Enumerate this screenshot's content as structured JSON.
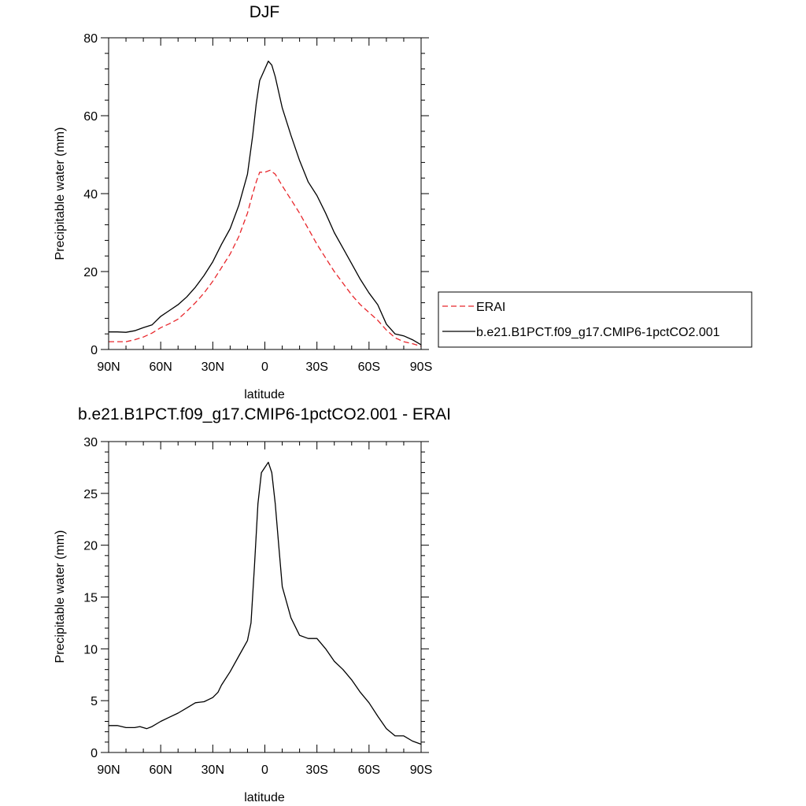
{
  "chart_data": [
    {
      "type": "line",
      "title": "DJF",
      "xlabel": "latitude",
      "ylabel": "Precipitable water (mm)",
      "xlim": [
        -90,
        90
      ],
      "ylim": [
        0,
        80
      ],
      "x_ticks": [
        -90,
        -60,
        -30,
        0,
        30,
        60,
        90
      ],
      "x_tick_labels": [
        "90N",
        "60N",
        "30N",
        "0",
        "30S",
        "60S",
        "90S"
      ],
      "y_ticks": [
        0,
        20,
        40,
        60,
        80
      ],
      "y_tick_labels": [
        "0",
        "20",
        "40",
        "60",
        "80"
      ],
      "legend": [
        {
          "label": "ERAI",
          "color": "#e8262b",
          "dash": "dashed"
        },
        {
          "label": "b.e21.B1PCT.f09_g17.CMIP6-1pctCO2.001",
          "color": "#000000",
          "dash": "solid"
        }
      ],
      "series": [
        {
          "name": "ERAI",
          "color": "#e8262b",
          "dash": "dashed",
          "points": [
            [
              -90,
              2
            ],
            [
              -80,
              2
            ],
            [
              -75,
              2.5
            ],
            [
              -70,
              3.2
            ],
            [
              -65,
              4.2
            ],
            [
              -60,
              5.6
            ],
            [
              -55,
              6.6
            ],
            [
              -50,
              7.8
            ],
            [
              -45,
              9.8
            ],
            [
              -40,
              12
            ],
            [
              -35,
              14.5
            ],
            [
              -30,
              17.5
            ],
            [
              -25,
              21
            ],
            [
              -20,
              24.5
            ],
            [
              -15,
              29
            ],
            [
              -10,
              35
            ],
            [
              -7,
              40
            ],
            [
              -5,
              43
            ],
            [
              -3,
              45.5
            ],
            [
              0,
              45.5
            ],
            [
              3,
              46
            ],
            [
              6,
              45
            ],
            [
              10,
              42
            ],
            [
              15,
              38.5
            ],
            [
              20,
              35
            ],
            [
              25,
              31
            ],
            [
              30,
              27
            ],
            [
              35,
              23.5
            ],
            [
              40,
              20
            ],
            [
              45,
              17
            ],
            [
              50,
              14
            ],
            [
              55,
              11.5
            ],
            [
              60,
              9.5
            ],
            [
              65,
              7.5
            ],
            [
              70,
              5
            ],
            [
              75,
              3
            ],
            [
              80,
              2
            ],
            [
              85,
              1.5
            ],
            [
              90,
              0.8
            ]
          ]
        },
        {
          "name": "b.e21.B1PCT.f09_g17.CMIP6-1pctCO2.001",
          "color": "#000000",
          "dash": "solid",
          "points": [
            [
              -90,
              4.5
            ],
            [
              -85,
              4.5
            ],
            [
              -80,
              4.4
            ],
            [
              -75,
              4.8
            ],
            [
              -70,
              5.6
            ],
            [
              -65,
              6.3
            ],
            [
              -60,
              8.5
            ],
            [
              -55,
              10
            ],
            [
              -50,
              11.5
            ],
            [
              -45,
              13.5
            ],
            [
              -40,
              16
            ],
            [
              -35,
              19
            ],
            [
              -30,
              22.5
            ],
            [
              -25,
              27
            ],
            [
              -20,
              31
            ],
            [
              -15,
              37
            ],
            [
              -10,
              45
            ],
            [
              -7,
              55
            ],
            [
              -5,
              63
            ],
            [
              -3,
              69
            ],
            [
              0,
              72
            ],
            [
              2,
              74
            ],
            [
              4,
              73
            ],
            [
              6,
              70
            ],
            [
              10,
              62
            ],
            [
              15,
              55
            ],
            [
              20,
              48.5
            ],
            [
              25,
              43
            ],
            [
              30,
              39.5
            ],
            [
              35,
              35
            ],
            [
              40,
              30
            ],
            [
              45,
              26
            ],
            [
              50,
              22
            ],
            [
              55,
              18
            ],
            [
              60,
              14.5
            ],
            [
              65,
              11.5
            ],
            [
              70,
              6.5
            ],
            [
              75,
              4
            ],
            [
              80,
              3.5
            ],
            [
              85,
              2.5
            ],
            [
              90,
              1.2
            ]
          ]
        }
      ]
    },
    {
      "type": "line",
      "title": "b.e21.B1PCT.f09_g17.CMIP6-1pctCO2.001 - ERAI",
      "xlabel": "latitude",
      "ylabel": "Precipitable water (mm)",
      "xlim": [
        -90,
        90
      ],
      "ylim": [
        0,
        30
      ],
      "x_ticks": [
        -90,
        -60,
        -30,
        0,
        30,
        60,
        90
      ],
      "x_tick_labels": [
        "90N",
        "60N",
        "30N",
        "0",
        "30S",
        "60S",
        "90S"
      ],
      "y_ticks": [
        0,
        5,
        10,
        15,
        20,
        25,
        30
      ],
      "y_tick_labels": [
        "0",
        "5",
        "10",
        "15",
        "20",
        "25",
        "30"
      ],
      "series": [
        {
          "name": "b.e21.B1PCT.f09_g17.CMIP6-1pctCO2.001 - ERAI",
          "color": "#000000",
          "dash": "solid",
          "points": [
            [
              -90,
              2.6
            ],
            [
              -85,
              2.6
            ],
            [
              -80,
              2.4
            ],
            [
              -75,
              2.4
            ],
            [
              -72,
              2.5
            ],
            [
              -68,
              2.3
            ],
            [
              -65,
              2.5
            ],
            [
              -60,
              3
            ],
            [
              -55,
              3.4
            ],
            [
              -50,
              3.8
            ],
            [
              -45,
              4.3
            ],
            [
              -40,
              4.8
            ],
            [
              -35,
              4.9
            ],
            [
              -30,
              5.3
            ],
            [
              -27,
              5.8
            ],
            [
              -25,
              6.5
            ],
            [
              -20,
              7.8
            ],
            [
              -15,
              9.3
            ],
            [
              -10,
              10.8
            ],
            [
              -8,
              12.5
            ],
            [
              -6,
              18
            ],
            [
              -4,
              24
            ],
            [
              -2,
              27
            ],
            [
              0,
              27.5
            ],
            [
              2,
              28
            ],
            [
              4,
              27
            ],
            [
              6,
              24
            ],
            [
              8,
              20
            ],
            [
              10,
              16
            ],
            [
              15,
              13
            ],
            [
              20,
              11.3
            ],
            [
              25,
              11
            ],
            [
              30,
              11
            ],
            [
              35,
              10
            ],
            [
              40,
              8.8
            ],
            [
              45,
              8
            ],
            [
              50,
              7
            ],
            [
              55,
              5.8
            ],
            [
              60,
              4.8
            ],
            [
              65,
              3.5
            ],
            [
              70,
              2.3
            ],
            [
              75,
              1.6
            ],
            [
              80,
              1.6
            ],
            [
              85,
              1.1
            ],
            [
              90,
              0.8
            ]
          ]
        }
      ]
    }
  ]
}
